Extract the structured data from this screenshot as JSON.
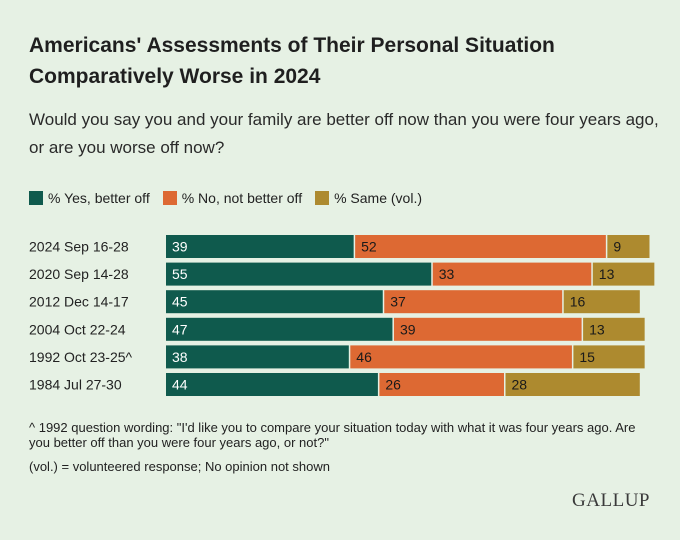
{
  "title": "Americans' Assessments of Their Personal Situation Comparatively Worse in 2024",
  "subtitle": "Would you say you and your family are better off now than you were four years ago, or are you worse off now?",
  "colors": {
    "background": "#e6f1e4",
    "better": "#0f5a4d",
    "not_better": "#dd6933",
    "same": "#ad8a2f"
  },
  "chart_data": {
    "type": "bar",
    "orientation": "horizontal",
    "stacked": true,
    "title": "Americans' Assessments of Their Personal Situation Comparatively Worse in 2024",
    "subtitle": "Would you say you and your family are better off now than you were four years ago, or are you worse off now?",
    "categories": [
      "2024 Sep 16-28",
      "2020 Sep 14-28",
      "2012 Dec 14-17",
      "2004 Oct 22-24",
      "1992 Oct 23-25^",
      "1984 Jul 27-30"
    ],
    "series": [
      {
        "name": "% Yes, better off",
        "values": [
          39,
          55,
          45,
          47,
          38,
          44
        ]
      },
      {
        "name": "% No, not better off",
        "values": [
          52,
          33,
          37,
          39,
          46,
          26
        ]
      },
      {
        "name": "% Same (vol.)",
        "values": [
          9,
          13,
          16,
          13,
          15,
          28
        ]
      }
    ],
    "xlim": [
      0,
      100
    ],
    "legend": "top-left",
    "grid": false
  },
  "notes": {
    "wording": "^ 1992 question wording: \"I'd like you to compare your situation today with what it was four years ago. Are you better off than you were four years ago, or not?\"",
    "vol": "(vol.) = volunteered response; No opinion not shown"
  },
  "logo": "GALLUP"
}
